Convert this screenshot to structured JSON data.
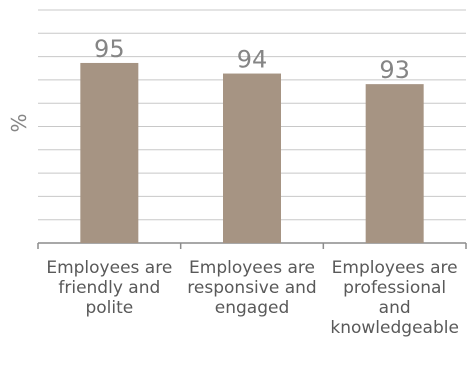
{
  "chart_data": {
    "type": "bar",
    "categories": [
      "Employees are friendly and polite",
      "Employees are responsive and engaged",
      "Employees are professional and knowledgeable"
    ],
    "values": [
      95,
      94,
      93
    ],
    "data_labels": [
      "95",
      "94",
      "93"
    ],
    "title": "",
    "xlabel": "",
    "ylabel": "%",
    "ylim": [
      78,
      100
    ],
    "grid": true,
    "legend": "none",
    "colors": {
      "bar": "#a69483",
      "grid": "#c8c8c8",
      "axis": "#8c8c8c",
      "label": "#858585",
      "tick": "#595959"
    }
  }
}
